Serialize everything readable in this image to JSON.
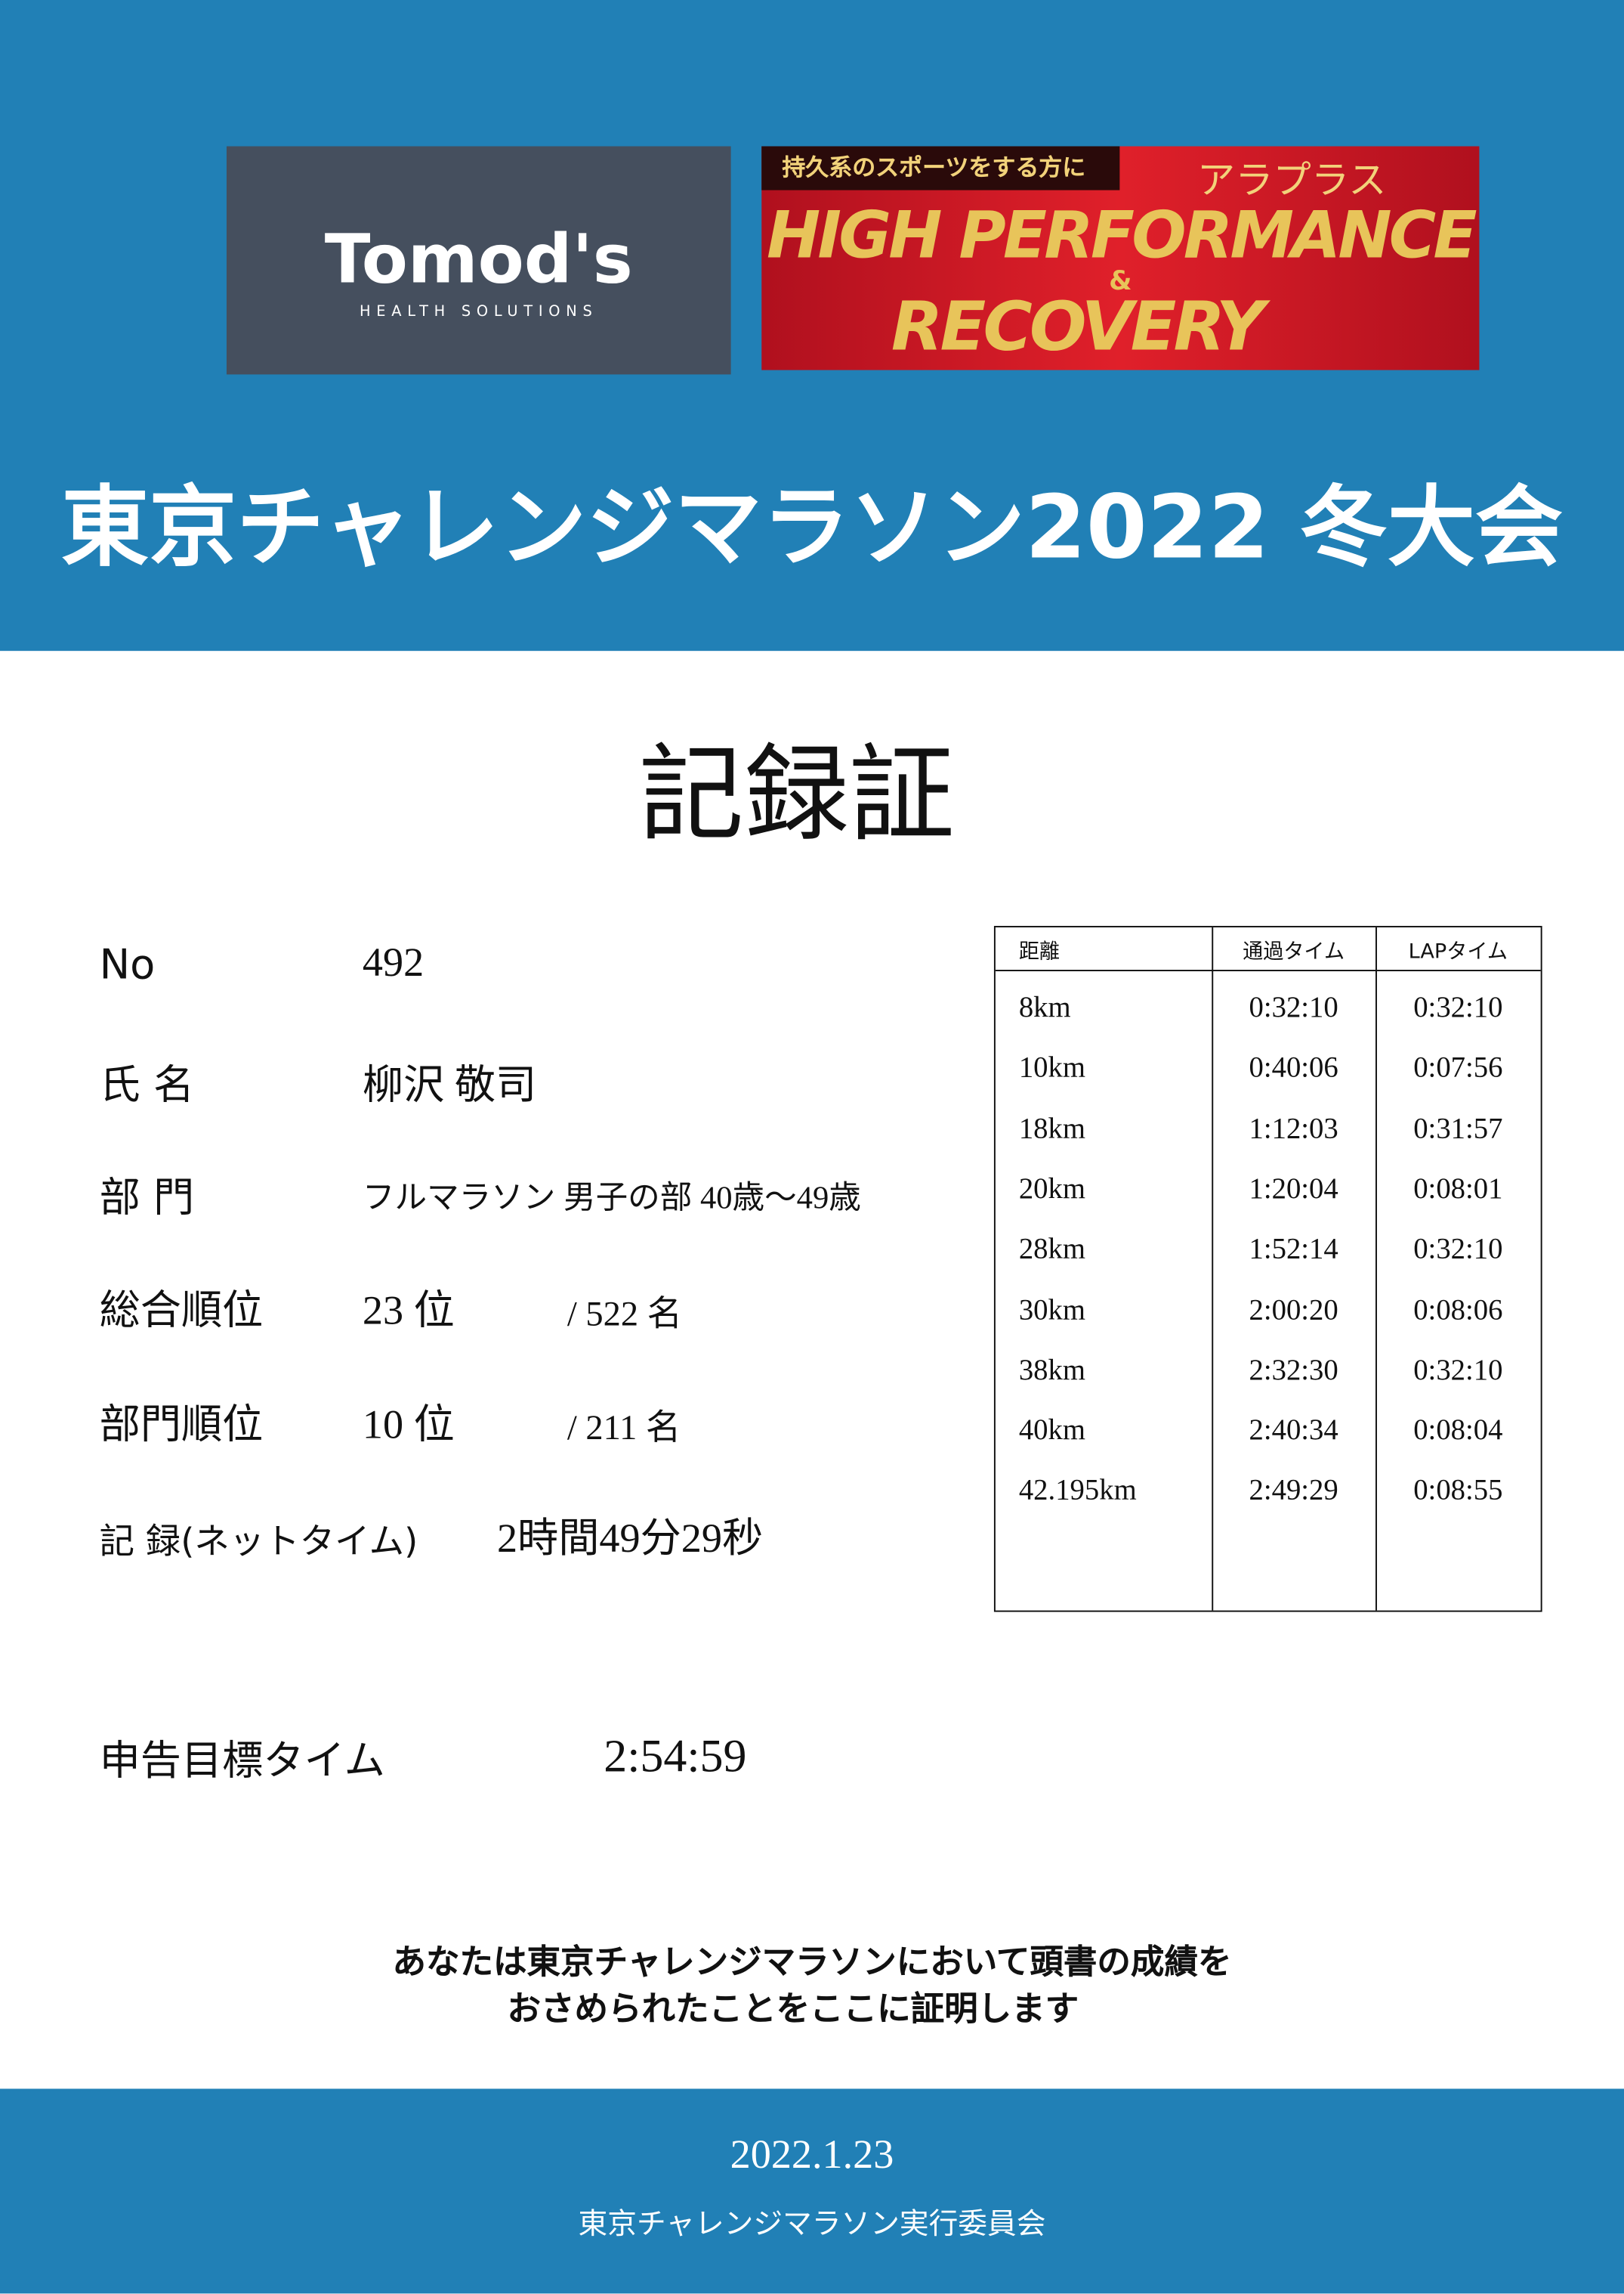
{
  "header": {
    "brand": "Tomod's",
    "brand_sub": "HEALTH SOLUTIONS",
    "banner_tag": "持久系のスポーツをする方に",
    "banner_brand": "アラプラス",
    "banner_line1": "HIGH PERFORMANCE",
    "banner_amp": "&",
    "banner_line2": "RECOVERY",
    "title": "東京チャレンジマラソン2022 冬大会"
  },
  "certificate_title": "記録証",
  "fields": [
    {
      "label": "No",
      "value": "492"
    },
    {
      "label": "氏 名",
      "value": "柳沢 敬司"
    },
    {
      "label": "部 門",
      "value": "フルマラソン 男子の部 40歳～49歳"
    },
    {
      "label": "総合順位",
      "value": "23 位",
      "total": "/ 522 名"
    },
    {
      "label": "部門順位",
      "value": "10 位",
      "total": "/ 211 名"
    },
    {
      "label": "記 録(ネットタイム)",
      "value": "2時間49分29秒"
    }
  ],
  "target": {
    "label": "申告目標タイム",
    "value": "2:54:59"
  },
  "table": {
    "headers": [
      "距離",
      "通過タイム",
      "LAPタイム"
    ],
    "rows": [
      [
        "8km",
        "0:32:10",
        "0:32:10"
      ],
      [
        "10km",
        "0:40:06",
        "0:07:56"
      ],
      [
        "18km",
        "1:12:03",
        "0:31:57"
      ],
      [
        "20km",
        "1:20:04",
        "0:08:01"
      ],
      [
        "28km",
        "1:52:14",
        "0:32:10"
      ],
      [
        "30km",
        "2:00:20",
        "0:08:06"
      ],
      [
        "38km",
        "2:32:30",
        "0:32:10"
      ],
      [
        "40km",
        "2:40:34",
        "0:08:04"
      ],
      [
        "42.195km",
        "2:49:29",
        "0:08:55"
      ]
    ]
  },
  "statement": [
    "あなたは東京チャレンジマラソンにおいて頭書の成績を",
    "おさめられたことをここに証明します"
  ],
  "footer": {
    "date": "2022.1.23",
    "organizer": "東京チャレンジマラソン実行委員会"
  }
}
